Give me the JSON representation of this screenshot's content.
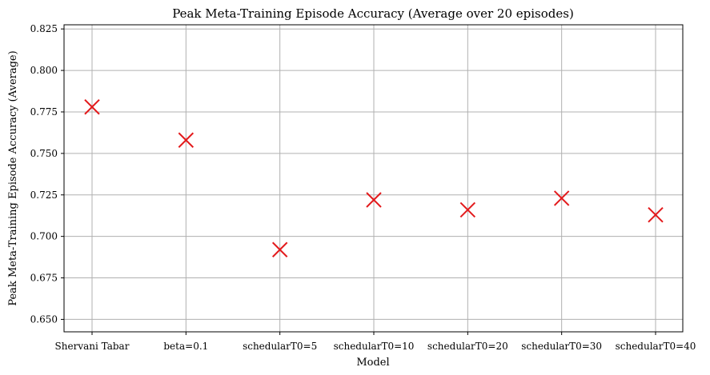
{
  "chart_data": {
    "type": "scatter",
    "title": "Peak Meta-Training Episode Accuracy (Average over 20 episodes)",
    "xlabel": "Model",
    "ylabel": "Peak Meta-Training Episode Accuracy (Average)",
    "categories": [
      "Shervani Tabar",
      "beta=0.1",
      "schedularT0=5",
      "schedularT0=10",
      "schedularT0=20",
      "schedularT0=30",
      "schedularT0=40"
    ],
    "values": [
      0.778,
      0.758,
      0.692,
      0.722,
      0.716,
      0.723,
      0.713
    ],
    "ylim": [
      0.6425,
      0.8275
    ],
    "yticks": [
      0.65,
      0.675,
      0.7,
      0.725,
      0.75,
      0.775,
      0.8,
      0.825
    ],
    "ytick_labels": [
      "0.650",
      "0.675",
      "0.700",
      "0.725",
      "0.750",
      "0.775",
      "0.800",
      "0.825"
    ],
    "grid": true,
    "marker": "x",
    "marker_color": "#e31a1c"
  }
}
